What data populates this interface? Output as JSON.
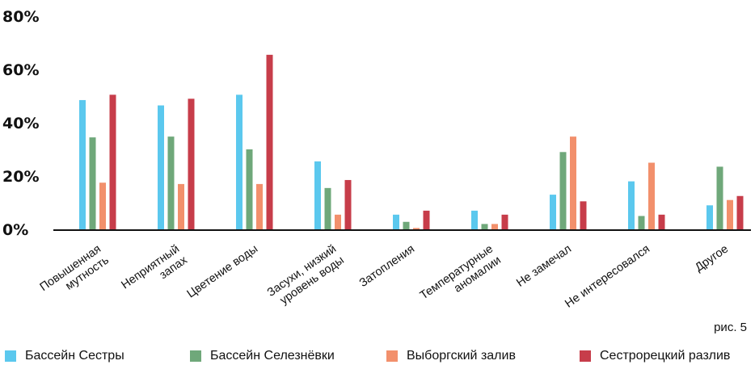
{
  "chart_data": {
    "type": "bar",
    "categories": [
      [
        "Повышенная",
        "мутность"
      ],
      [
        "Неприятный",
        "запах"
      ],
      [
        "Цветение воды"
      ],
      [
        "Засухи, низкий",
        "уровень воды"
      ],
      [
        "Затопления"
      ],
      [
        "Температурные",
        "аномалии"
      ],
      [
        "Не замечал"
      ],
      [
        "Не интересовался"
      ],
      [
        "Другое"
      ]
    ],
    "series": [
      {
        "name": "Бассейн Сестры",
        "color": "#5BC8EE",
        "values": [
          48.5,
          46.5,
          50.5,
          25.5,
          5.5,
          7,
          13,
          18,
          9
        ]
      },
      {
        "name": "Бассейн Селезнёвки",
        "color": "#6FA87A",
        "values": [
          34.5,
          34.8,
          30,
          15.5,
          2.8,
          2,
          29,
          5,
          23.5
        ]
      },
      {
        "name": "Выборгский залив",
        "color": "#F2906C",
        "values": [
          17.5,
          17,
          17,
          5.5,
          0.5,
          2,
          34.8,
          25,
          11
        ]
      },
      {
        "name": "Сестрорецкий разлив",
        "color": "#C73D4A",
        "values": [
          50.5,
          49,
          65.5,
          18.5,
          7,
          5.5,
          10.5,
          5.5,
          12.5
        ]
      }
    ],
    "yticks": [
      "0%",
      "20%",
      "40%",
      "60%",
      "80%"
    ],
    "ylim": [
      0,
      80
    ],
    "legend": "bottom",
    "grid": false
  },
  "caption": "рис. 5"
}
